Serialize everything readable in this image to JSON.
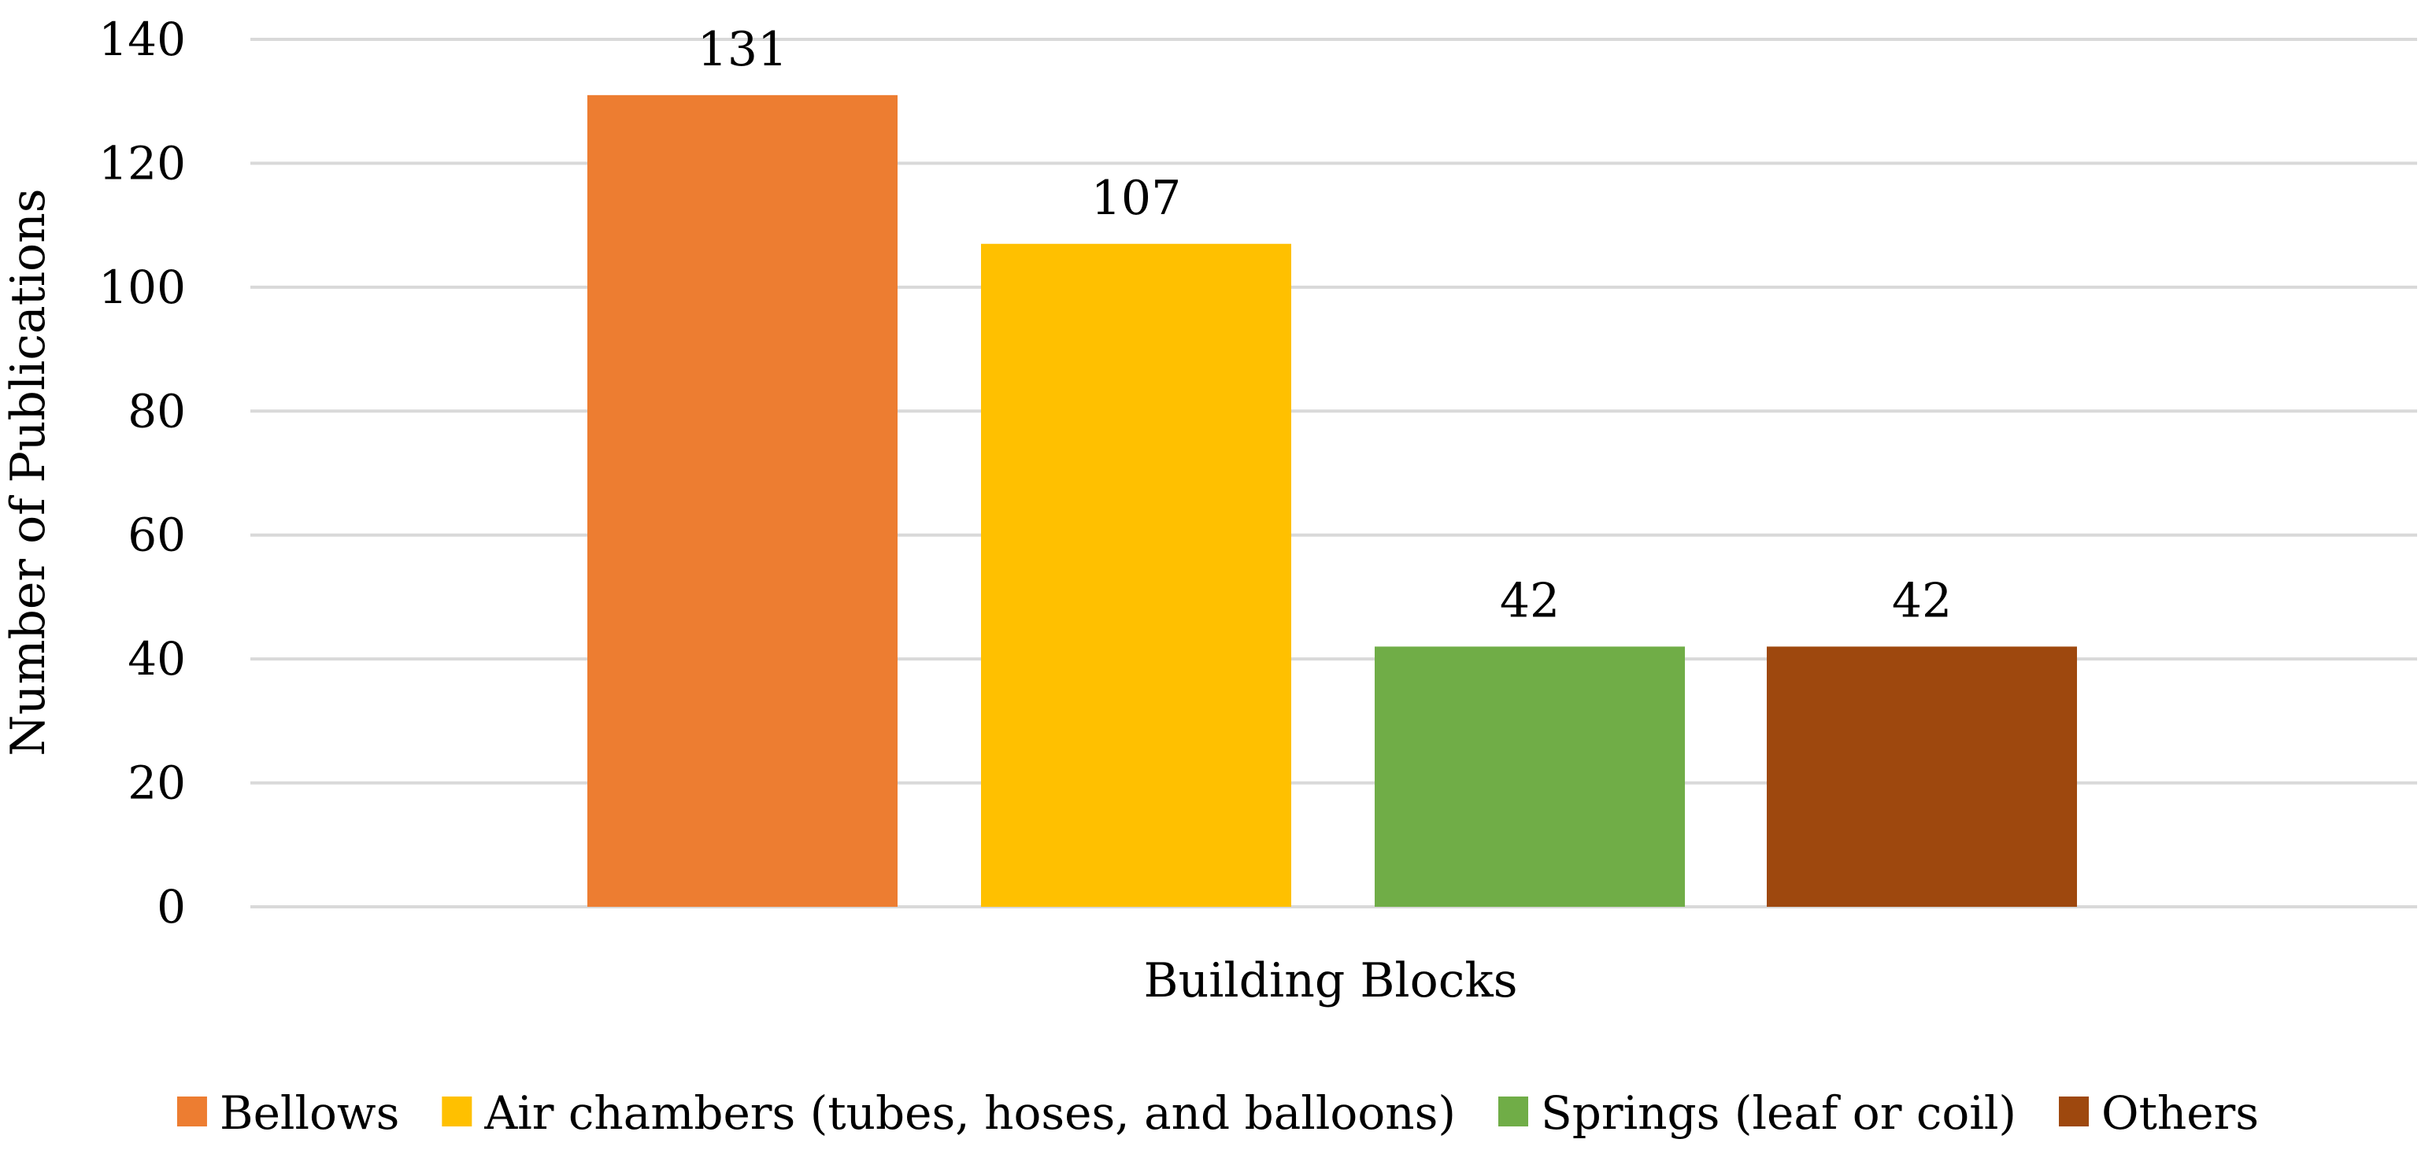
{
  "chart_data": {
    "type": "bar",
    "title": "",
    "xlabel": "Building Blocks",
    "ylabel": "Number of Publications",
    "ylim": [
      0,
      140
    ],
    "yticks": [
      0,
      20,
      40,
      60,
      80,
      100,
      120,
      140
    ],
    "grid": true,
    "legend_position": "bottom",
    "categories": [
      "Building Blocks"
    ],
    "series": [
      {
        "name": "Bellows",
        "values": [
          131
        ],
        "color": "#ED7D31"
      },
      {
        "name": "Air chambers (tubes, hoses, and balloons)",
        "values": [
          107
        ],
        "color": "#FFC000"
      },
      {
        "name": "Springs (leaf or coil)",
        "values": [
          42
        ],
        "color": "#70AD47"
      },
      {
        "name": "Others",
        "values": [
          42
        ],
        "color": "#9E480E"
      }
    ],
    "data_labels": [
      "131",
      "107",
      "42",
      "42"
    ]
  }
}
